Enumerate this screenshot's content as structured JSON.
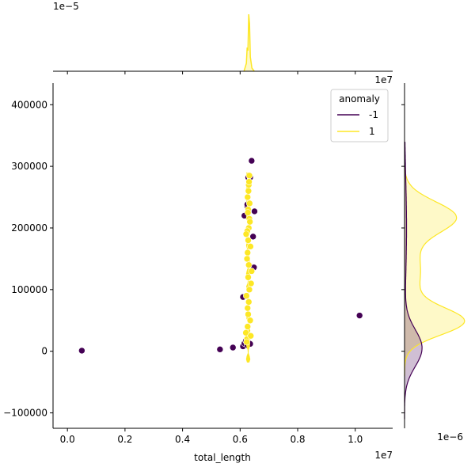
{
  "chart_data": {
    "type": "scatter",
    "kind": "jointplot",
    "xlabel": "total_length",
    "ylabel": "",
    "x_scale_label": "1e7",
    "y_scale_label": "1e7",
    "top_marginal_scale_label": "1e−5",
    "right_marginal_scale_label": "1e−6",
    "xlim": [
      -0.05,
      1.13
    ],
    "ylim": [
      -125000,
      435000
    ],
    "x_ticks": [
      0.0,
      0.2,
      0.4,
      0.6,
      0.8,
      1.0
    ],
    "x_tick_labels": [
      "0.0",
      "0.2",
      "0.4",
      "0.6",
      "0.8",
      "1.0"
    ],
    "y_ticks": [
      -100000,
      0,
      100000,
      200000,
      300000,
      400000
    ],
    "y_tick_labels": [
      "−100000",
      "0",
      "100000",
      "200000",
      "300000",
      "400000"
    ],
    "grid": false,
    "legend": {
      "title": "anomaly",
      "placement": "top-right",
      "entries": [
        {
          "label": "-1",
          "color": "#440154"
        },
        {
          "label": "1",
          "color": "#fde725"
        }
      ]
    },
    "series": [
      {
        "name": "-1",
        "color": "#440154",
        "points": [
          [
            0.05,
            1000
          ],
          [
            0.53,
            3000
          ],
          [
            0.575,
            6000
          ],
          [
            0.61,
            8000
          ],
          [
            0.615,
            13000
          ],
          [
            0.62,
            17000
          ],
          [
            0.625,
            10000
          ],
          [
            0.63,
            14000
          ],
          [
            0.635,
            12000
          ],
          [
            0.61,
            88000
          ],
          [
            0.615,
            220000
          ],
          [
            0.625,
            235000
          ],
          [
            0.625,
            238000
          ],
          [
            0.628,
            282000
          ],
          [
            0.635,
            282000
          ],
          [
            0.64,
            309000
          ],
          [
            0.645,
            186000
          ],
          [
            0.648,
            136000
          ],
          [
            0.65,
            227000
          ],
          [
            1.015,
            58000
          ]
        ]
      },
      {
        "name": "1",
        "color": "#fde725",
        "points": [
          [
            0.624,
            20000
          ],
          [
            0.626,
            40000
          ],
          [
            0.628,
            60000
          ],
          [
            0.63,
            80000
          ],
          [
            0.632,
            100000
          ],
          [
            0.628,
            120000
          ],
          [
            0.63,
            140000
          ],
          [
            0.626,
            160000
          ],
          [
            0.628,
            180000
          ],
          [
            0.63,
            200000
          ],
          [
            0.632,
            215000
          ],
          [
            0.628,
            230000
          ],
          [
            0.626,
            250000
          ],
          [
            0.63,
            270000
          ],
          [
            0.632,
            285000
          ],
          [
            0.62,
            30000
          ],
          [
            0.635,
            50000
          ],
          [
            0.622,
            90000
          ],
          [
            0.638,
            110000
          ],
          [
            0.624,
            150000
          ],
          [
            0.636,
            170000
          ],
          [
            0.625,
            195000
          ],
          [
            0.634,
            210000
          ],
          [
            0.627,
            225000
          ],
          [
            0.633,
            240000
          ],
          [
            0.629,
            260000
          ],
          [
            0.631,
            275000
          ],
          [
            0.623,
            15000
          ],
          [
            0.637,
            25000
          ],
          [
            0.626,
            70000
          ],
          [
            0.64,
            130000
          ],
          [
            0.621,
            190000
          ]
        ]
      }
    ],
    "top_marginal": {
      "peak_x": 0.63
    },
    "right_marginal": {
      "series_1_peaks_y": [
        48000,
        218000
      ],
      "series_neg1_peak_y": 5000
    }
  }
}
